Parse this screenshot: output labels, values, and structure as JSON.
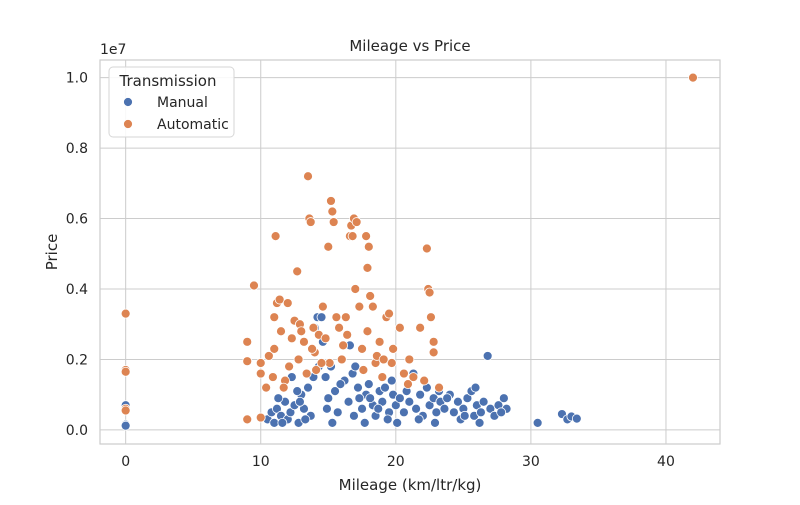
{
  "chart_data": {
    "type": "scatter",
    "title": "Mileage vs Price",
    "xlabel": "Mileage (km/ltr/kg)",
    "ylabel": "Price",
    "y_offset_label": "1e7",
    "xlim": [
      -1.9,
      44
    ],
    "ylim": [
      -0.4,
      10.5
    ],
    "y_display_scale": 1000000.0,
    "x_ticks": [
      0,
      10,
      20,
      30,
      40
    ],
    "x_tick_labels": [
      "0",
      "10",
      "20",
      "30",
      "40"
    ],
    "y_ticks": [
      0,
      2,
      4,
      6,
      8,
      10
    ],
    "y_tick_labels": [
      "0.0",
      "0.2",
      "0.4",
      "0.6",
      "0.8",
      "1.0"
    ],
    "grid": true,
    "legend": {
      "title": "Transmission",
      "placement": "top-left",
      "entries": [
        "Manual",
        "Automatic"
      ]
    },
    "series": [
      {
        "name": "Manual",
        "color": "#4c72b0",
        "points": [
          [
            0,
            0.7
          ],
          [
            0,
            0.15
          ],
          [
            0,
            0.12
          ],
          [
            10.5,
            0.3
          ],
          [
            10.8,
            0.5
          ],
          [
            11,
            0.2
          ],
          [
            11.2,
            0.6
          ],
          [
            11.5,
            0.4
          ],
          [
            11.8,
            0.8
          ],
          [
            12,
            0.3
          ],
          [
            12.2,
            0.5
          ],
          [
            12.5,
            0.7
          ],
          [
            12.8,
            0.2
          ],
          [
            13,
            1.0
          ],
          [
            13.2,
            0.6
          ],
          [
            13.5,
            1.2
          ],
          [
            13.7,
            0.4
          ],
          [
            14,
            2.9
          ],
          [
            14.2,
            3.2
          ],
          [
            14.5,
            3.2
          ],
          [
            14.6,
            2.5
          ],
          [
            14.8,
            1.5
          ],
          [
            15,
            0.9
          ],
          [
            15.2,
            1.8
          ],
          [
            15.5,
            1.1
          ],
          [
            15.7,
            0.5
          ],
          [
            16,
            2.0
          ],
          [
            16.2,
            1.4
          ],
          [
            16.5,
            0.8
          ],
          [
            16.8,
            1.6
          ],
          [
            17,
            1.8
          ],
          [
            17.2,
            1.2
          ],
          [
            17.5,
            0.6
          ],
          [
            17.8,
            1.0
          ],
          [
            18,
            1.3
          ],
          [
            18.3,
            0.7
          ],
          [
            18.5,
            0.4
          ],
          [
            18.8,
            1.1
          ],
          [
            19,
            0.8
          ],
          [
            19.2,
            1.2
          ],
          [
            19.5,
            0.5
          ],
          [
            19.8,
            1.0
          ],
          [
            20,
            0.7
          ],
          [
            20.3,
            0.9
          ],
          [
            20.6,
            0.5
          ],
          [
            21,
            0.8
          ],
          [
            21.3,
            1.6
          ],
          [
            21.5,
            0.6
          ],
          [
            21.8,
            1.0
          ],
          [
            22,
            0.4
          ],
          [
            22.3,
            1.2
          ],
          [
            22.5,
            0.7
          ],
          [
            22.8,
            0.9
          ],
          [
            23,
            0.5
          ],
          [
            23.3,
            0.8
          ],
          [
            23.6,
            0.6
          ],
          [
            24,
            1.0
          ],
          [
            24.3,
            0.5
          ],
          [
            24.6,
            0.8
          ],
          [
            25,
            0.6
          ],
          [
            25.3,
            0.9
          ],
          [
            25.6,
            1.1
          ],
          [
            25.8,
            0.4
          ],
          [
            26,
            0.7
          ],
          [
            26.3,
            0.5
          ],
          [
            26.5,
            0.8
          ],
          [
            26.8,
            2.1
          ],
          [
            27,
            0.6
          ],
          [
            27.3,
            0.4
          ],
          [
            27.6,
            0.7
          ],
          [
            28,
            0.9
          ],
          [
            28.2,
            0.6
          ],
          [
            30.5,
            0.2
          ],
          [
            32.3,
            0.45
          ],
          [
            32.7,
            0.3
          ],
          [
            33,
            0.38
          ],
          [
            33.4,
            0.32
          ],
          [
            11.3,
            0.9
          ],
          [
            12.7,
            1.1
          ],
          [
            13.9,
            1.5
          ],
          [
            15.9,
            1.3
          ],
          [
            17.3,
            0.9
          ],
          [
            18.7,
            0.6
          ],
          [
            20.8,
            1.1
          ],
          [
            23.8,
            0.9
          ],
          [
            25.9,
            1.2
          ],
          [
            14.3,
            1.8
          ],
          [
            16.6,
            2.4
          ],
          [
            12.3,
            1.5
          ],
          [
            19.4,
            0.3
          ],
          [
            21.7,
            0.3
          ],
          [
            24.8,
            0.3
          ],
          [
            13.3,
            0.3
          ],
          [
            15.3,
            0.2
          ],
          [
            17.7,
            0.2
          ],
          [
            27.8,
            0.5
          ],
          [
            11.6,
            0.2
          ],
          [
            22.9,
            0.2
          ],
          [
            26.2,
            0.2
          ],
          [
            14.9,
            0.6
          ],
          [
            16.9,
            0.4
          ],
          [
            18.1,
            0.9
          ],
          [
            20.1,
            0.2
          ],
          [
            23.2,
            1.1
          ],
          [
            25.1,
            0.4
          ],
          [
            12.9,
            0.8
          ],
          [
            19.7,
            1.4
          ]
        ]
      },
      {
        "name": "Automatic",
        "color": "#dd8452",
        "points": [
          [
            0,
            3.3
          ],
          [
            0,
            1.7
          ],
          [
            0,
            1.65
          ],
          [
            0,
            0.6
          ],
          [
            0,
            0.55
          ],
          [
            9,
            2.5
          ],
          [
            9,
            1.95
          ],
          [
            9,
            0.3
          ],
          [
            9.5,
            4.1
          ],
          [
            10,
            1.9
          ],
          [
            10,
            1.6
          ],
          [
            10,
            0.35
          ],
          [
            10.6,
            2.1
          ],
          [
            10.9,
            1.5
          ],
          [
            11,
            2.3
          ],
          [
            11,
            3.2
          ],
          [
            11.1,
            5.5
          ],
          [
            11.2,
            3.6
          ],
          [
            11.4,
            3.7
          ],
          [
            11.5,
            2.8
          ],
          [
            11.8,
            1.4
          ],
          [
            12,
            3.6
          ],
          [
            12.3,
            2.6
          ],
          [
            12.5,
            3.1
          ],
          [
            12.7,
            4.5
          ],
          [
            12.9,
            3.0
          ],
          [
            13,
            2.8
          ],
          [
            13.2,
            2.5
          ],
          [
            13.5,
            7.2
          ],
          [
            13.6,
            6.0
          ],
          [
            13.7,
            5.9
          ],
          [
            13.9,
            2.9
          ],
          [
            14,
            2.2
          ],
          [
            14.3,
            2.7
          ],
          [
            14.6,
            3.5
          ],
          [
            14.8,
            2.6
          ],
          [
            15,
            5.2
          ],
          [
            15.2,
            6.5
          ],
          [
            15.3,
            6.2
          ],
          [
            15.4,
            5.9
          ],
          [
            15.6,
            3.2
          ],
          [
            15.8,
            2.9
          ],
          [
            16,
            2.0
          ],
          [
            16.3,
            3.2
          ],
          [
            16.6,
            5.5
          ],
          [
            16.7,
            5.8
          ],
          [
            16.8,
            5.5
          ],
          [
            16.9,
            6.0
          ],
          [
            17,
            4.0
          ],
          [
            17.1,
            5.9
          ],
          [
            17.3,
            3.5
          ],
          [
            17.5,
            2.3
          ],
          [
            17.8,
            5.5
          ],
          [
            17.9,
            4.6
          ],
          [
            18,
            5.2
          ],
          [
            18.1,
            3.8
          ],
          [
            18.3,
            3.5
          ],
          [
            18.5,
            1.9
          ],
          [
            18.8,
            2.5
          ],
          [
            19,
            1.5
          ],
          [
            19.3,
            3.2
          ],
          [
            19.5,
            3.3
          ],
          [
            19.7,
            1.9
          ],
          [
            20.3,
            2.9
          ],
          [
            20.6,
            1.6
          ],
          [
            21,
            2.0
          ],
          [
            21.3,
            1.5
          ],
          [
            21.8,
            2.9
          ],
          [
            22.1,
            1.4
          ],
          [
            22.3,
            5.15
          ],
          [
            22.4,
            4.0
          ],
          [
            22.5,
            3.9
          ],
          [
            22.6,
            3.2
          ],
          [
            22.8,
            2.5
          ],
          [
            22.8,
            2.2
          ],
          [
            23.2,
            1.2
          ],
          [
            42,
            10.0
          ],
          [
            12.1,
            1.8
          ],
          [
            12.8,
            2.0
          ],
          [
            13.4,
            1.6
          ],
          [
            14.1,
            1.7
          ],
          [
            15.1,
            1.9
          ],
          [
            16.1,
            2.4
          ],
          [
            17.6,
            1.7
          ],
          [
            18.6,
            2.1
          ],
          [
            19.8,
            2.3
          ],
          [
            13.8,
            2.3
          ],
          [
            14.5,
            1.9
          ],
          [
            16.4,
            2.7
          ],
          [
            11.7,
            1.2
          ],
          [
            10.4,
            1.2
          ],
          [
            20.9,
            1.3
          ],
          [
            17.9,
            2.8
          ],
          [
            19.1,
            2.0
          ]
        ]
      }
    ]
  }
}
